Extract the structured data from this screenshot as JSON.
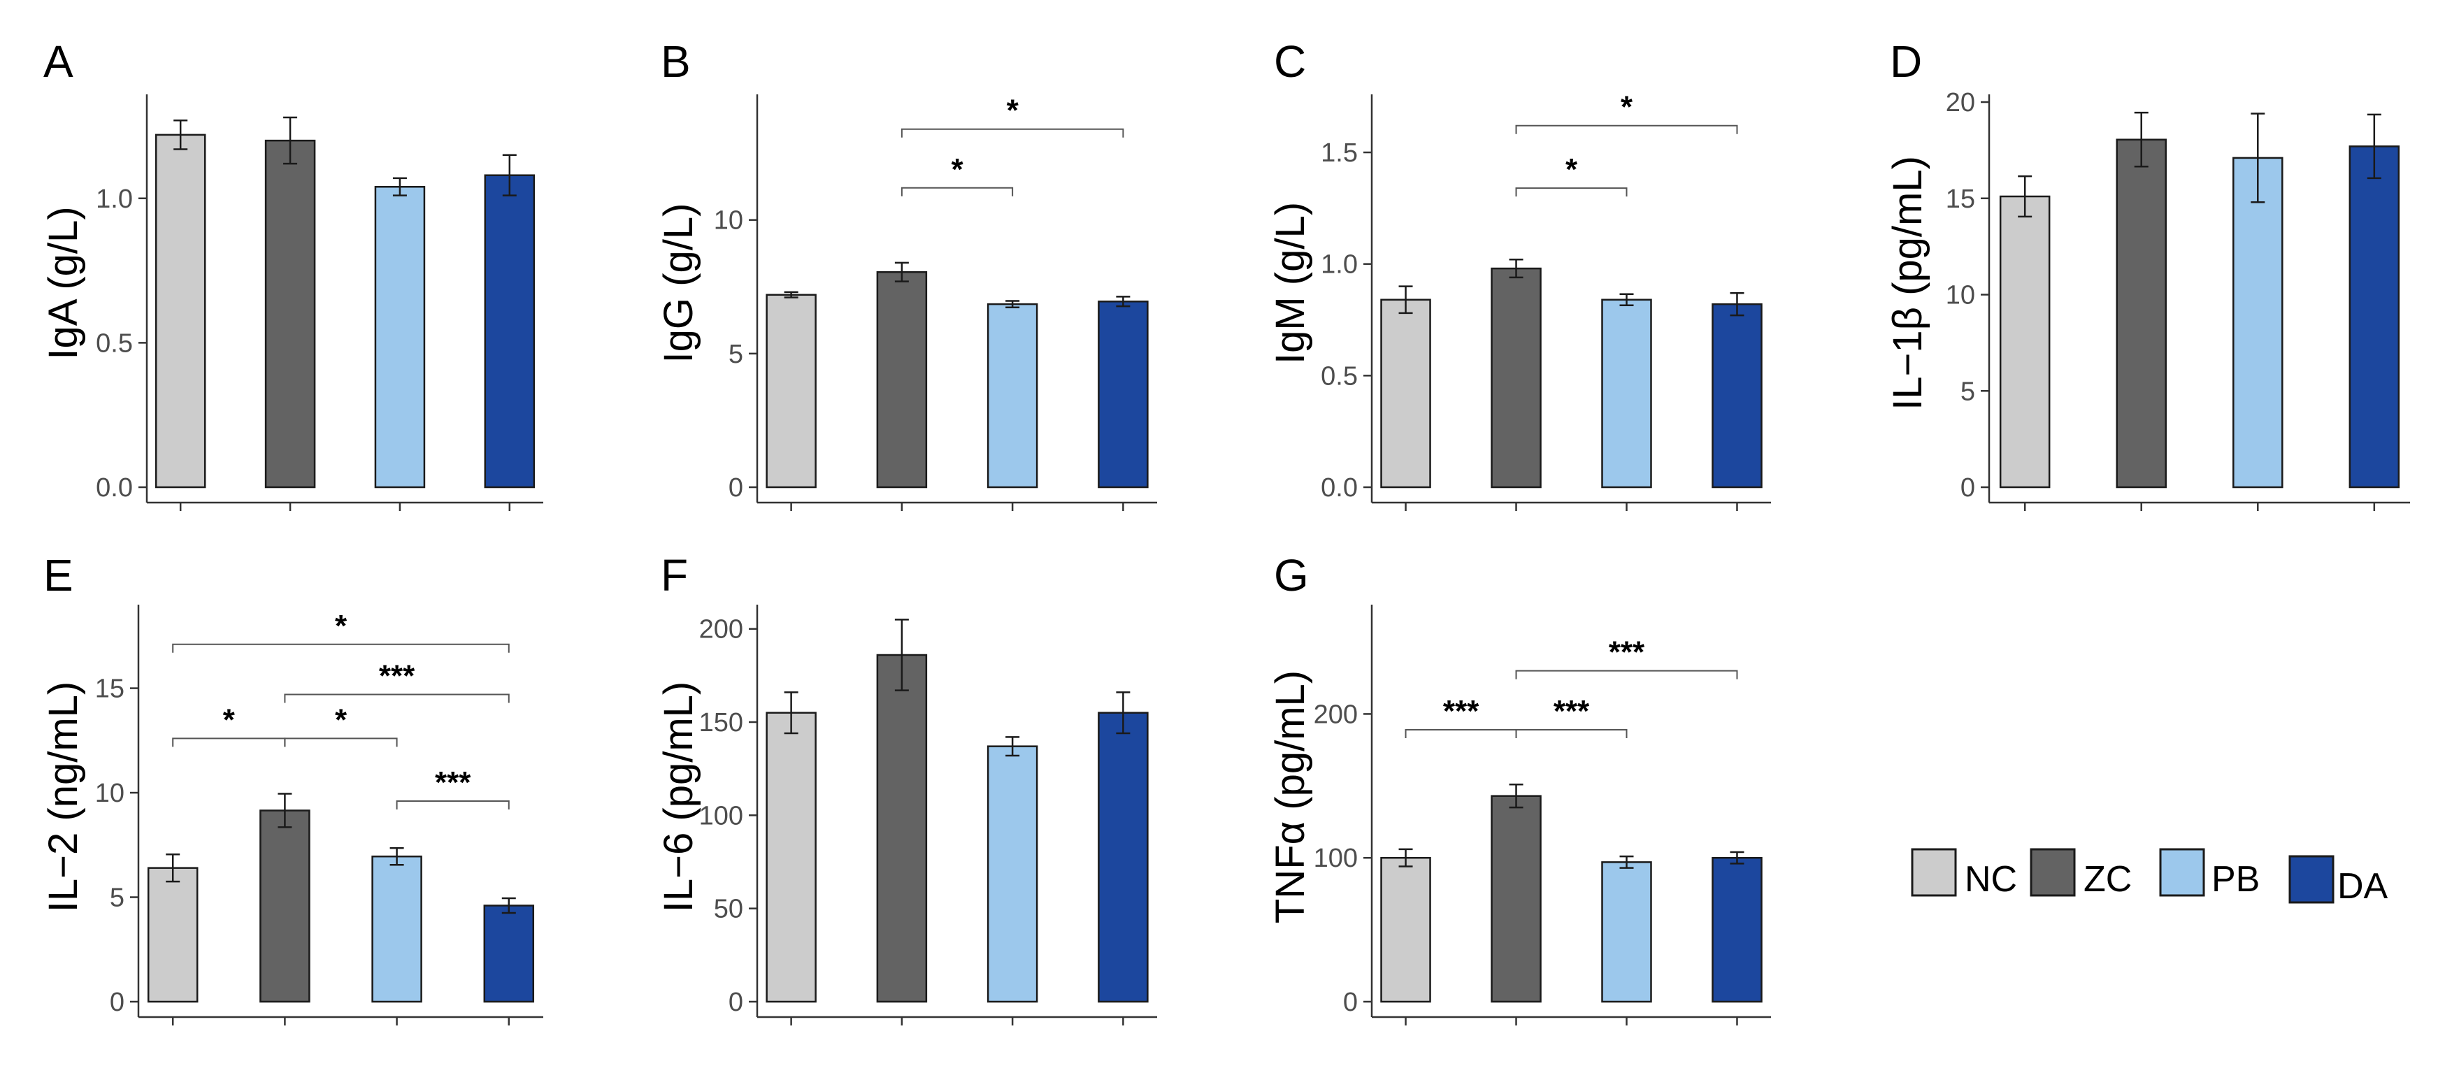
{
  "figure": {
    "colors": {
      "NC": "#cccccc",
      "ZC": "#636363",
      "PB": "#9cc8ec",
      "DA": "#1c479e"
    },
    "legend": [
      "NC",
      "ZC",
      "PB",
      "DA"
    ]
  },
  "chart_data": [
    {
      "id": "A",
      "type": "bar",
      "title": "A",
      "ylabel": "IgA (g/L)",
      "xlabel": "",
      "categories": [
        "NC",
        "ZC",
        "PB",
        "DA"
      ],
      "values": [
        1.22,
        1.2,
        1.04,
        1.08
      ],
      "errors": [
        0.05,
        0.08,
        0.03,
        0.07
      ],
      "ylim": [
        0,
        1.36
      ],
      "yticks": [
        "0.0",
        "0.5",
        "1.0"
      ],
      "ytick_values": [
        0,
        0.5,
        1.0
      ],
      "significance": []
    },
    {
      "id": "B",
      "type": "bar",
      "title": "B",
      "ylabel": "IgG (g/L)",
      "xlabel": "",
      "categories": [
        "NC",
        "ZC",
        "PB",
        "DA"
      ],
      "values": [
        7.2,
        8.05,
        6.85,
        6.95
      ],
      "errors": [
        0.1,
        0.35,
        0.12,
        0.18
      ],
      "ylim": [
        0,
        14.7
      ],
      "yticks": [
        "0",
        "5",
        "10"
      ],
      "ytick_values": [
        0,
        5,
        10
      ],
      "significance": [
        {
          "from": 1,
          "to": 2,
          "label": "*",
          "y": 11.2
        },
        {
          "from": 1,
          "to": 3,
          "label": "*",
          "y": 13.4
        }
      ]
    },
    {
      "id": "C",
      "type": "bar",
      "title": "C",
      "ylabel": "IgM (g/L)",
      "xlabel": "",
      "categories": [
        "NC",
        "ZC",
        "PB",
        "DA"
      ],
      "values": [
        0.84,
        0.98,
        0.84,
        0.82
      ],
      "errors": [
        0.06,
        0.04,
        0.025,
        0.05
      ],
      "ylim": [
        0,
        1.76
      ],
      "yticks": [
        "0.0",
        "0.5",
        "1.0",
        "1.5"
      ],
      "ytick_values": [
        0,
        0.5,
        1.0,
        1.5
      ],
      "significance": [
        {
          "from": 1,
          "to": 2,
          "label": "*",
          "y": 1.34
        },
        {
          "from": 1,
          "to": 3,
          "label": "*",
          "y": 1.62
        }
      ]
    },
    {
      "id": "D",
      "type": "bar",
      "title": "D",
      "ylabel": "IL−1β (pg/mL)",
      "xlabel": "",
      "categories": [
        "NC",
        "ZC",
        "PB",
        "DA"
      ],
      "values": [
        15.1,
        18.05,
        17.1,
        17.7
      ],
      "errors": [
        1.05,
        1.4,
        2.3,
        1.65
      ],
      "ylim": [
        0,
        20.4
      ],
      "yticks": [
        "0",
        "5",
        "10",
        "15",
        "20"
      ],
      "ytick_values": [
        0,
        5,
        10,
        15,
        20
      ],
      "significance": []
    },
    {
      "id": "E",
      "type": "bar",
      "title": "E",
      "ylabel": "IL−2 (ng/mL)",
      "xlabel": "",
      "categories": [
        "NC",
        "ZC",
        "PB",
        "DA"
      ],
      "values": [
        6.4,
        9.15,
        6.95,
        4.6
      ],
      "errors": [
        0.65,
        0.8,
        0.4,
        0.35
      ],
      "ylim": [
        0,
        19.0
      ],
      "yticks": [
        "0",
        "5",
        "10",
        "15"
      ],
      "ytick_values": [
        0,
        5,
        10,
        15
      ],
      "significance": [
        {
          "from": 2,
          "to": 3,
          "label": "***",
          "y": 9.6
        },
        {
          "from": 0,
          "to": 1,
          "label": "*",
          "y": 12.6
        },
        {
          "from": 1,
          "to": 2,
          "label": "*",
          "y": 12.6
        },
        {
          "from": 1,
          "to": 3,
          "label": "***",
          "y": 14.7
        },
        {
          "from": 0,
          "to": 3,
          "label": "*",
          "y": 17.1
        }
      ]
    },
    {
      "id": "F",
      "type": "bar",
      "title": "F",
      "ylabel": "IL−6 (pg/mL)",
      "xlabel": "",
      "categories": [
        "NC",
        "ZC",
        "PB",
        "DA"
      ],
      "values": [
        155,
        186,
        137,
        155
      ],
      "errors": [
        11,
        19,
        5,
        11
      ],
      "ylim": [
        0,
        213
      ],
      "yticks": [
        "0",
        "50",
        "100",
        "150",
        "200"
      ],
      "ytick_values": [
        0,
        50,
        100,
        150,
        200
      ],
      "significance": []
    },
    {
      "id": "G",
      "type": "bar",
      "title": "G",
      "ylabel": "TNFα (pg/mL)",
      "xlabel": "",
      "categories": [
        "NC",
        "ZC",
        "PB",
        "DA"
      ],
      "values": [
        100,
        143,
        97,
        100
      ],
      "errors": [
        6,
        8,
        4,
        4
      ],
      "ylim": [
        0,
        276
      ],
      "yticks": [
        "0",
        "100",
        "200"
      ],
      "ytick_values": [
        0,
        100,
        200
      ],
      "significance": [
        {
          "from": 0,
          "to": 1,
          "label": "***",
          "y": 189
        },
        {
          "from": 1,
          "to": 2,
          "label": "***",
          "y": 189
        },
        {
          "from": 1,
          "to": 3,
          "label": "***",
          "y": 230
        }
      ]
    }
  ]
}
